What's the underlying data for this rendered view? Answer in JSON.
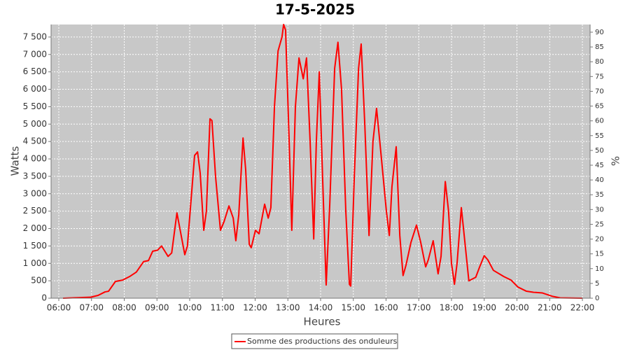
{
  "chart_data": {
    "type": "line",
    "title": "17-5-2025",
    "x_label": "Heures",
    "y_label": "Watts",
    "y2_label": "%",
    "grid": true,
    "xlim": [
      5.765,
      22.235
    ],
    "ylim": [
      0,
      7860
    ],
    "y2lim": [
      0,
      92.6
    ],
    "xticks": [
      {
        "value": 6,
        "label": "06:00"
      },
      {
        "value": 7,
        "label": "07:00"
      },
      {
        "value": 8,
        "label": "08:00"
      },
      {
        "value": 9,
        "label": "09:00"
      },
      {
        "value": 10,
        "label": "10:00"
      },
      {
        "value": 11,
        "label": "11:00"
      },
      {
        "value": 12,
        "label": "12:00"
      },
      {
        "value": 13,
        "label": "13:00"
      },
      {
        "value": 14,
        "label": "14:00"
      },
      {
        "value": 15,
        "label": "15:00"
      },
      {
        "value": 16,
        "label": "16:00"
      },
      {
        "value": 17,
        "label": "17:00"
      },
      {
        "value": 18,
        "label": "18:00"
      },
      {
        "value": 19,
        "label": "19:00"
      },
      {
        "value": 20,
        "label": "20:00"
      },
      {
        "value": 21,
        "label": "21:00"
      },
      {
        "value": 22,
        "label": "22:00"
      }
    ],
    "yticks": [
      0,
      500,
      {
        "value": 1000,
        "label": "1 000"
      },
      {
        "value": 1500,
        "label": "1 500"
      },
      {
        "value": 2000,
        "label": "2 000"
      },
      {
        "value": 2500,
        "label": "2 500"
      },
      {
        "value": 3000,
        "label": "3 000"
      },
      {
        "value": 3500,
        "label": "3 500"
      },
      {
        "value": 4000,
        "label": "4 000"
      },
      {
        "value": 4500,
        "label": "4 500"
      },
      {
        "value": 5000,
        "label": "5 000"
      },
      {
        "value": 5500,
        "label": "5 500"
      },
      {
        "value": 6000,
        "label": "6 000"
      },
      {
        "value": 6500,
        "label": "6 500"
      },
      {
        "value": 7000,
        "label": "7 000"
      },
      {
        "value": 7500,
        "label": "7 500"
      }
    ],
    "y2ticks": [
      0,
      5,
      10,
      15,
      20,
      25,
      30,
      35,
      40,
      45,
      50,
      55,
      60,
      65,
      70,
      75,
      80,
      85,
      90
    ],
    "x": [
      6.13,
      6.98,
      7.2,
      7.41,
      7.52,
      7.73,
      7.95,
      8.16,
      8.37,
      8.59,
      8.74,
      8.87,
      9.02,
      9.14,
      9.34,
      9.45,
      9.61,
      9.85,
      9.93,
      10.15,
      10.24,
      10.32,
      10.43,
      10.51,
      10.62,
      10.68,
      10.79,
      10.94,
      11.05,
      11.2,
      11.33,
      11.41,
      11.5,
      11.63,
      11.71,
      11.82,
      11.88,
      12.01,
      12.12,
      12.29,
      12.4,
      12.48,
      12.59,
      12.7,
      12.82,
      12.87,
      12.93,
      13.04,
      13.12,
      13.23,
      13.34,
      13.47,
      13.57,
      13.68,
      13.79,
      13.87,
      13.96,
      14.06,
      14.17,
      14.28,
      14.43,
      14.53,
      14.64,
      14.77,
      14.88,
      14.92,
      15.03,
      15.16,
      15.24,
      15.35,
      15.48,
      15.6,
      15.71,
      15.86,
      16.01,
      16.1,
      16.18,
      16.31,
      16.42,
      16.52,
      16.61,
      16.76,
      16.93,
      17.06,
      17.21,
      17.29,
      17.44,
      17.59,
      17.68,
      17.81,
      17.91,
      18.0,
      18.09,
      18.17,
      18.3,
      18.41,
      18.53,
      18.74,
      18.86,
      19.0,
      19.11,
      19.28,
      19.6,
      19.82,
      20.03,
      20.29,
      20.5,
      20.78,
      21.1,
      21.32,
      22.0
    ],
    "series": [
      {
        "name": "Somme des productions des onduleurs",
        "color": "#ff0000",
        "values": [
          0,
          30,
          80,
          180,
          200,
          480,
          520,
          620,
          750,
          1050,
          1080,
          1350,
          1380,
          1500,
          1200,
          1300,
          2450,
          1250,
          1500,
          4100,
          4200,
          3600,
          1950,
          2500,
          5150,
          5100,
          3500,
          1950,
          2200,
          2650,
          2300,
          1650,
          2400,
          4600,
          3700,
          1550,
          1450,
          1950,
          1850,
          2700,
          2300,
          2600,
          5500,
          7100,
          7500,
          7860,
          7700,
          4500,
          1950,
          5500,
          6900,
          6300,
          6900,
          4500,
          1700,
          4500,
          6500,
          3500,
          380,
          2700,
          6600,
          7350,
          6000,
          2500,
          400,
          350,
          3500,
          6600,
          7300,
          5000,
          1800,
          4500,
          5450,
          4000,
          2500,
          1800,
          3200,
          4350,
          1800,
          650,
          950,
          1600,
          2100,
          1600,
          900,
          1100,
          1650,
          700,
          1200,
          3350,
          2500,
          1000,
          400,
          1000,
          2600,
          1600,
          500,
          600,
          900,
          1220,
          1100,
          800,
          620,
          520,
          320,
          200,
          170,
          150,
          50,
          10,
          0
        ]
      }
    ]
  }
}
